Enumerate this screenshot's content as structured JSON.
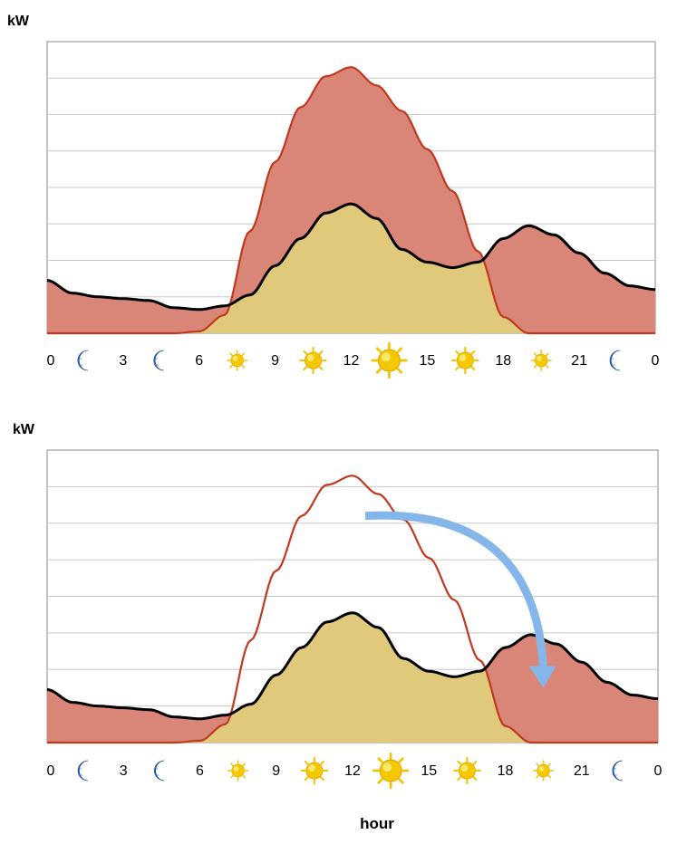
{
  "colors": {
    "production": "#d98578",
    "production_line": "#c0391f",
    "self_consumption": "#e0c97a",
    "grid_import_top": "#6a9ecf",
    "grid_import_bottom": "#d98578",
    "consumption_line": "#000000",
    "shift_arrow": "#84b6ea",
    "grid": "#c8c8c8",
    "axis": "#888888",
    "moon": "#2f6fd6",
    "sun": "#f2c400"
  },
  "x_axis": {
    "title": "hour",
    "ticks": [
      "0",
      "3",
      "6",
      "9",
      "12",
      "15",
      "18",
      "21",
      "0"
    ],
    "tick_hours": [
      0,
      3,
      6,
      9,
      12,
      15,
      18,
      21,
      24
    ],
    "icons": [
      {
        "hour": 1.5,
        "name": "moon-icon"
      },
      {
        "hour": 4.5,
        "name": "moon-icon"
      },
      {
        "hour": 7.5,
        "name": "sun-small-icon"
      },
      {
        "hour": 10.5,
        "name": "sun-medium-icon"
      },
      {
        "hour": 13.5,
        "name": "sun-large-icon"
      },
      {
        "hour": 16.5,
        "name": "sun-medium-icon"
      },
      {
        "hour": 19.5,
        "name": "sun-small-icon"
      },
      {
        "hour": 22.5,
        "name": "moon-icon"
      }
    ]
  },
  "chart_data": [
    {
      "type": "area",
      "ylabel": "kW",
      "xlabel": "",
      "xlim": [
        0,
        24
      ],
      "ylim": [
        0,
        8
      ],
      "grid": true,
      "y_ticks_labeled": false,
      "x": [
        0,
        1,
        2,
        3,
        4,
        5,
        6,
        7,
        8,
        9,
        10,
        11,
        12,
        13,
        14,
        15,
        16,
        17,
        18,
        19,
        20,
        21,
        22,
        23,
        24
      ],
      "series": [
        {
          "values": [
            0,
            0,
            0,
            0,
            0,
            0,
            0.05,
            0.5,
            2.8,
            4.7,
            6.2,
            7.05,
            7.3,
            6.8,
            6.1,
            5.05,
            3.9,
            2.25,
            0.45,
            0,
            0,
            0,
            0,
            0,
            0
          ]
        },
        {
          "values": [
            1.45,
            1.1,
            1.0,
            0.95,
            0.9,
            0.7,
            0.65,
            0.75,
            1.05,
            1.85,
            2.6,
            3.3,
            3.55,
            3.15,
            2.3,
            1.95,
            1.8,
            1.95,
            2.6,
            2.95,
            2.7,
            2.2,
            1.65,
            1.3,
            1.2
          ]
        }
      ]
    },
    {
      "type": "area",
      "ylabel": "kW",
      "xlabel": "hour",
      "xlim": [
        0,
        24
      ],
      "ylim": [
        0,
        8
      ],
      "grid": true,
      "y_ticks_labeled": false,
      "x": [
        0,
        1,
        2,
        3,
        4,
        5,
        6,
        7,
        8,
        9,
        10,
        11,
        12,
        13,
        14,
        15,
        16,
        17,
        18,
        19,
        20,
        21,
        22,
        23,
        24
      ],
      "series": [
        {
          "values": [
            0,
            0,
            0,
            0,
            0,
            0,
            0.05,
            0.5,
            2.8,
            4.7,
            6.2,
            7.05,
            7.3,
            6.8,
            6.1,
            5.05,
            3.9,
            2.25,
            0.45,
            0,
            0,
            0,
            0,
            0,
            0
          ]
        },
        {
          "values": [
            1.45,
            1.1,
            1.0,
            0.95,
            0.9,
            0.7,
            0.65,
            0.75,
            1.05,
            1.85,
            2.6,
            3.3,
            3.55,
            3.15,
            2.3,
            1.95,
            1.8,
            1.95,
            2.6,
            2.95,
            2.7,
            2.2,
            1.65,
            1.3,
            1.2
          ]
        }
      ],
      "annotations": [
        {
          "type": "arrow",
          "from_hour": 12.5,
          "from_kw": 6.2,
          "to_hour": 19.5,
          "to_kw": 1.5
        }
      ]
    }
  ]
}
